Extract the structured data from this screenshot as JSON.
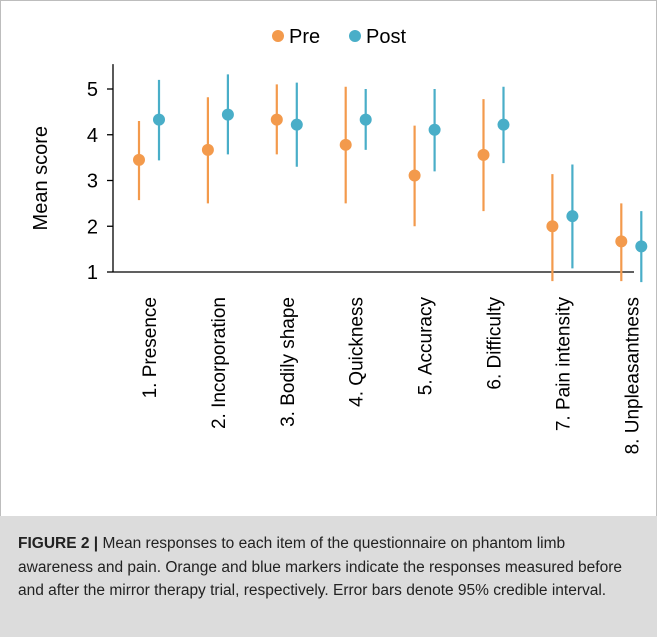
{
  "chart_data": {
    "type": "scatter",
    "ylabel": "Mean score",
    "ylim": [
      1,
      5.5
    ],
    "yticks": [
      1,
      2,
      3,
      4,
      5
    ],
    "categories": [
      "1. Presence",
      "2. Incorporation",
      "3. Bodily shape",
      "4. Quickness",
      "5. Accuracy",
      "6. Difficulty",
      "7. Pain intensity",
      "8. Unpleasantness"
    ],
    "series": [
      {
        "name": "Pre",
        "color": "#f39a4c",
        "values": [
          3.45,
          3.67,
          4.33,
          3.78,
          3.11,
          3.56,
          2.0,
          1.67
        ],
        "ci_low": [
          2.57,
          2.5,
          3.57,
          2.5,
          2.0,
          2.33,
          0.8,
          0.8
        ],
        "ci_high": [
          4.3,
          4.82,
          5.1,
          5.05,
          4.2,
          4.78,
          3.14,
          2.5
        ]
      },
      {
        "name": "Post",
        "color": "#49aec8",
        "values": [
          4.33,
          4.44,
          4.22,
          4.33,
          4.11,
          4.22,
          2.22,
          1.56
        ],
        "ci_low": [
          3.44,
          3.57,
          3.3,
          3.67,
          3.2,
          3.38,
          1.08,
          0.78
        ],
        "ci_high": [
          5.2,
          5.32,
          5.14,
          5.0,
          5.0,
          5.05,
          3.35,
          2.33
        ]
      }
    ],
    "legend": "top-center"
  },
  "caption": {
    "label": "FIGURE 2 |",
    "text": " Mean responses to each item of the questionnaire on phantom limb awareness and pain. Orange and blue markers indicate the responses measured before and after the mirror therapy trial, respectively. Error bars denote 95% credible interval."
  }
}
